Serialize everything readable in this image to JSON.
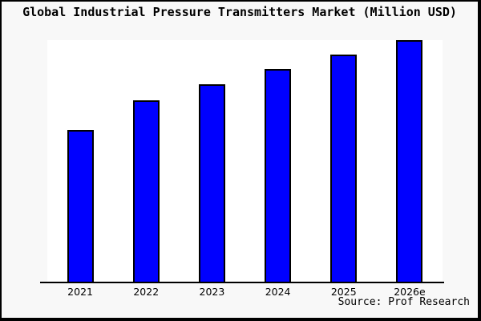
{
  "chart_data": {
    "type": "bar",
    "title": "Global Industrial Pressure Transmitters Market (Million USD)",
    "categories": [
      "2021",
      "2022",
      "2023",
      "2024",
      "2025",
      "2026e"
    ],
    "values_relative_pct": [
      62.9,
      75.2,
      81.7,
      88.0,
      94.1,
      100.0
    ],
    "xlabel": "",
    "ylabel": "",
    "y_axis_labels_visible": false,
    "grid": false,
    "legend": false,
    "ylim": [
      0,
      100
    ],
    "source_note": "Source: Prof Research"
  },
  "colors": {
    "bar_fill": "#0000ff",
    "bar_border": "#000000",
    "plot_background": "#ffffff",
    "canvas_background": "#f8f8f8",
    "frame": "#000000",
    "text": "#000000"
  }
}
